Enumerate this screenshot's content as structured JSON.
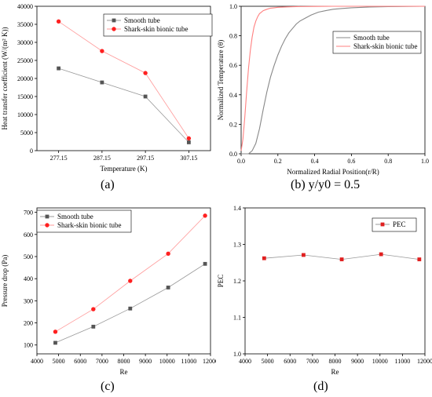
{
  "captions": {
    "a": "(a)",
    "b": "(b) y/y0 = 0.5",
    "c": "(c)",
    "d": "(d)"
  },
  "chart_data": [
    {
      "id": "a",
      "type": "line",
      "xlabel": "Temperature (K)",
      "ylabel": "Heat transfer coefficient (W/(m² K))",
      "x": [
        277.15,
        287.15,
        297.15,
        307.15
      ],
      "xticks": [
        "277.15",
        "287.15",
        "297.15",
        "307.15"
      ],
      "xlim": [
        272.15,
        312.15
      ],
      "ylim": [
        0,
        40000
      ],
      "yticks": [
        0,
        5000,
        10000,
        15000,
        20000,
        25000,
        30000,
        35000,
        40000
      ],
      "legend_position": "top-right",
      "series": [
        {
          "name": "Smooth tube",
          "color": "#555555",
          "marker": "square",
          "values": [
            22800,
            18900,
            15000,
            2300
          ]
        },
        {
          "name": "Shark-skin bionic tube",
          "color": "#ff2020",
          "marker": "circle",
          "values": [
            35800,
            27600,
            21500,
            3400
          ]
        }
      ]
    },
    {
      "id": "b",
      "type": "line",
      "xlabel": "Normalized Radial Position(r/R)",
      "ylabel": "Normalized Temperature (θ)",
      "xlim": [
        0,
        1.0
      ],
      "ylim": [
        0,
        1.0
      ],
      "xticks": [
        0.0,
        0.2,
        0.4,
        0.6,
        0.8,
        1.0
      ],
      "yticks": [
        0.0,
        0.2,
        0.4,
        0.6,
        0.8,
        1.0
      ],
      "legend_position": "center-right",
      "series": [
        {
          "name": "Smooth tube",
          "color": "#888888",
          "x": [
            0.0,
            0.04,
            0.06,
            0.08,
            0.1,
            0.12,
            0.14,
            0.16,
            0.18,
            0.2,
            0.22,
            0.24,
            0.26,
            0.28,
            0.3,
            0.32,
            0.35,
            0.38,
            0.42,
            0.46,
            0.5,
            0.55,
            0.6,
            0.7,
            0.8,
            0.9,
            1.0
          ],
          "values": [
            0.0,
            0.0,
            0.02,
            0.07,
            0.17,
            0.3,
            0.42,
            0.52,
            0.6,
            0.67,
            0.73,
            0.78,
            0.82,
            0.85,
            0.88,
            0.9,
            0.92,
            0.94,
            0.96,
            0.97,
            0.98,
            0.985,
            0.99,
            0.995,
            0.998,
            0.999,
            1.0
          ]
        },
        {
          "name": "Shark-skin bionic tube",
          "color": "#ff8080",
          "x": [
            0.0,
            0.01,
            0.02,
            0.03,
            0.04,
            0.05,
            0.06,
            0.07,
            0.08,
            0.09,
            0.1,
            0.12,
            0.14,
            0.16,
            0.18,
            0.2,
            0.25,
            0.3,
            0.4,
            0.5,
            0.6,
            0.8,
            1.0
          ],
          "values": [
            0.02,
            0.1,
            0.25,
            0.42,
            0.58,
            0.7,
            0.79,
            0.86,
            0.9,
            0.93,
            0.95,
            0.97,
            0.98,
            0.987,
            0.99,
            0.993,
            0.996,
            0.998,
            0.999,
            1.0,
            1.0,
            1.0,
            1.0
          ]
        }
      ]
    },
    {
      "id": "c",
      "type": "line",
      "xlabel": "Re",
      "ylabel": "Pressure drop (Pa)",
      "x": [
        4850,
        6600,
        8300,
        10050,
        11750
      ],
      "xlim": [
        4000,
        12000
      ],
      "xticks": [
        4000,
        5000,
        6000,
        7000,
        8000,
        9000,
        10000,
        11000,
        12000
      ],
      "ylim": [
        60,
        720
      ],
      "yticks": [
        100,
        200,
        300,
        400,
        500,
        600,
        700
      ],
      "legend_position": "top-left",
      "series": [
        {
          "name": "Smooth tube",
          "color": "#555555",
          "marker": "square",
          "values": [
            110,
            183,
            265,
            360,
            467
          ]
        },
        {
          "name": "Shark-skin bionic tube",
          "color": "#ff2020",
          "marker": "circle",
          "values": [
            160,
            262,
            390,
            513,
            685
          ]
        }
      ]
    },
    {
      "id": "d",
      "type": "line",
      "xlabel": "Re",
      "ylabel": "PEC",
      "x": [
        4850,
        6600,
        8300,
        10050,
        11750
      ],
      "xlim": [
        4000,
        12000
      ],
      "xticks": [
        4000,
        5000,
        6000,
        7000,
        8000,
        9000,
        10000,
        11000,
        12000
      ],
      "ylim": [
        1.0,
        1.4
      ],
      "yticks": [
        "1.0",
        "1.1",
        "1.2",
        "1.3",
        "1.4"
      ],
      "legend_position": "top-right",
      "series": [
        {
          "name": "PEC",
          "color": "#e02020",
          "marker": "square",
          "values": [
            1.262,
            1.271,
            1.259,
            1.273,
            1.259
          ]
        }
      ]
    }
  ]
}
